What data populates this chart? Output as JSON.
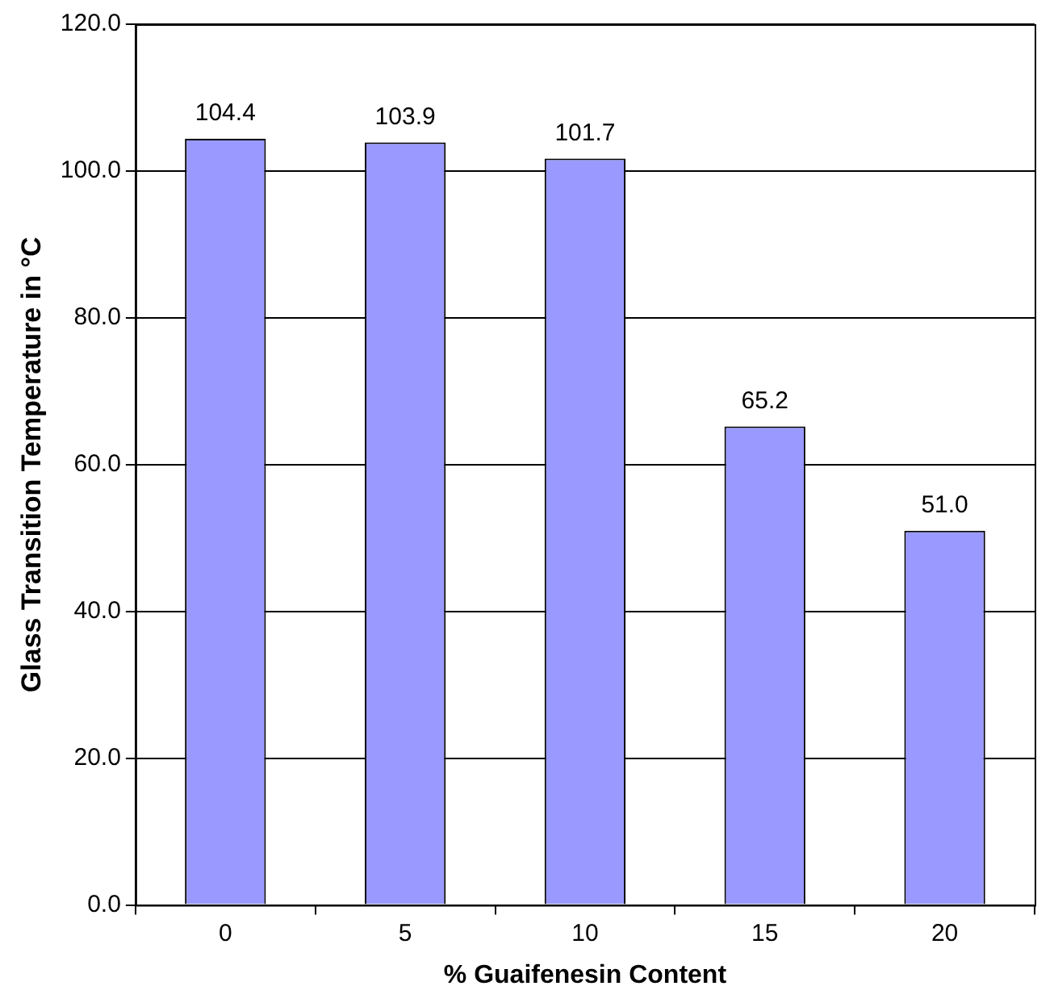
{
  "chart_data": {
    "type": "bar",
    "xlabel": "% Guaifenesin Content",
    "ylabel": "Glass Transition Temperature in °C",
    "categories": [
      "0",
      "5",
      "10",
      "15",
      "20"
    ],
    "values": [
      104.4,
      103.9,
      101.7,
      65.2,
      51.0
    ],
    "value_labels": [
      "104.4",
      "103.9",
      "101.7",
      "65.2",
      "51.0"
    ],
    "color": "#9999ff",
    "ylim": [
      0,
      120
    ],
    "yticks": [
      {
        "value": 0,
        "label": "0.0"
      },
      {
        "value": 20,
        "label": "20.0"
      },
      {
        "value": 40,
        "label": "40.0"
      },
      {
        "value": 60,
        "label": "60.0"
      },
      {
        "value": 80,
        "label": "80.0"
      },
      {
        "value": 100,
        "label": "100.0"
      },
      {
        "value": 120,
        "label": "120.0"
      }
    ],
    "grid": "y",
    "legend": false
  }
}
